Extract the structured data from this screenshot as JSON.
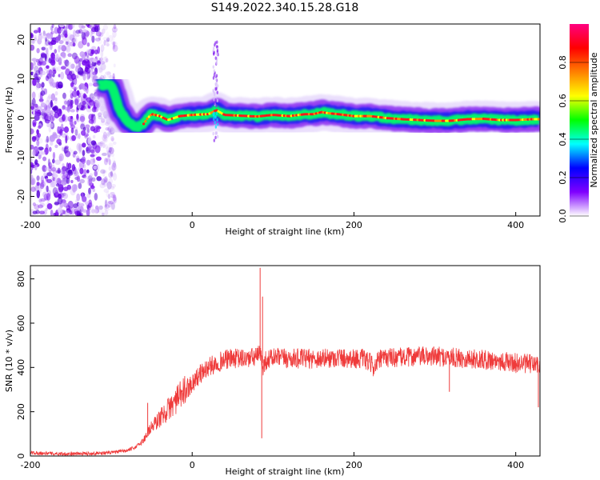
{
  "figure_title": "S149.2022.340.15.28.G18",
  "chart_data": [
    {
      "type": "heatmap",
      "xlabel": "Height of straight line (km)",
      "ylabel": "Frequency (Hz)",
      "xlim": [
        -200,
        430
      ],
      "ylim": [
        -25,
        24
      ],
      "xticks": [
        -200,
        0,
        200,
        400
      ],
      "yticks": [
        -20,
        -10,
        0,
        10,
        20
      ],
      "colorbar": {
        "label": "Normalized spectral amplitude",
        "range": [
          0,
          1
        ],
        "ticks": [
          0.0,
          0.2,
          0.4,
          0.6,
          0.8
        ],
        "tick_labels": [
          "0.0",
          "0.2",
          "0.4",
          "0.6",
          "0.8"
        ],
        "colormap": [
          "#ffffff",
          "#7f00ff",
          "#0000ff",
          "#00ffff",
          "#00ff00",
          "#ffff00",
          "#ff8000",
          "#ff0000",
          "#ff0080"
        ]
      },
      "dominant_frequency_trace": {
        "x": [
          -115,
          -100,
          -95,
          -90,
          -80,
          -70,
          -60,
          -55,
          -50,
          -40,
          -30,
          -15,
          0,
          20,
          30,
          40,
          60,
          80,
          100,
          120,
          140,
          150,
          160,
          170,
          180,
          200,
          220,
          240,
          260,
          280,
          300,
          320,
          340,
          360,
          380,
          400,
          420,
          430
        ],
        "y": [
          8.5,
          8.5,
          5.5,
          2.0,
          -1.0,
          -2.5,
          -1.5,
          0.0,
          1.0,
          0.5,
          -0.5,
          0.5,
          0.8,
          1.0,
          2.0,
          0.8,
          0.6,
          0.4,
          0.8,
          0.5,
          1.0,
          1.0,
          1.5,
          1.2,
          1.0,
          0.5,
          0.5,
          0.0,
          -0.3,
          -0.5,
          -0.7,
          -0.7,
          -0.3,
          -0.2,
          -0.5,
          -0.5,
          -0.3,
          -0.3
        ]
      },
      "noise_region_x": [
        -200,
        -115
      ]
    },
    {
      "type": "line",
      "xlabel": "Height of straight line (km)",
      "ylabel": "SNR (10 * v/v)",
      "xlim": [
        -200,
        430
      ],
      "ylim": [
        0,
        860
      ],
      "xticks": [
        -200,
        0,
        200,
        400
      ],
      "yticks": [
        0,
        200,
        400,
        600,
        800
      ],
      "color": "#ef3b3b",
      "series": [
        {
          "x": [
            -200,
            -180,
            -160,
            -140,
            -120,
            -100,
            -80,
            -70,
            -60,
            -55,
            -50,
            -40,
            -30,
            -20,
            -10,
            0,
            10,
            20,
            30,
            40,
            50,
            60,
            70,
            80,
            84,
            86,
            88,
            90,
            100,
            120,
            140,
            160,
            180,
            200,
            210,
            220,
            225,
            230,
            240,
            260,
            280,
            300,
            320,
            340,
            360,
            380,
            400,
            420,
            430
          ],
          "y": [
            15,
            12,
            10,
            10,
            12,
            15,
            25,
            40,
            70,
            110,
            130,
            170,
            210,
            250,
            290,
            330,
            370,
            400,
            420,
            435,
            440,
            440,
            440,
            450,
            460,
            440,
            400,
            430,
            445,
            440,
            440,
            440,
            445,
            440,
            440,
            420,
            400,
            430,
            445,
            445,
            450,
            450,
            445,
            440,
            435,
            430,
            420,
            415,
            410
          ]
        }
      ],
      "spikes": {
        "x": [
          -55,
          84,
          86,
          87,
          225,
          318,
          428
        ],
        "y": [
          240,
          850,
          80,
          720,
          380,
          290,
          220
        ]
      }
    }
  ]
}
